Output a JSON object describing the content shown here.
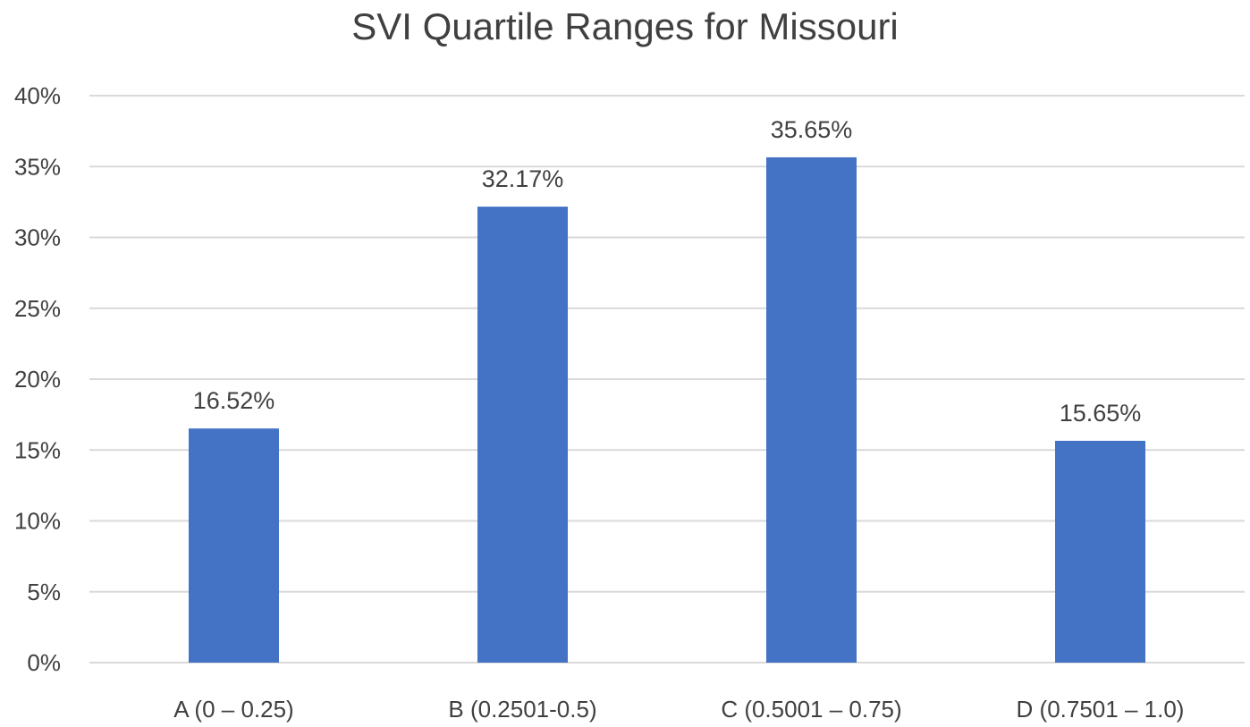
{
  "chart_data": {
    "type": "bar",
    "title": "SVI Quartile Ranges for Missouri",
    "xlabel": "",
    "ylabel": "",
    "categories": [
      "A (0 – 0.25)",
      "B (0.2501-0.5)",
      "C (0.5001 – 0.75)",
      "D (0.7501 – 1.0)"
    ],
    "values": [
      16.52,
      32.17,
      35.65,
      15.65
    ],
    "data_labels": [
      "16.52%",
      "32.17%",
      "35.65%",
      "15.65%"
    ],
    "ylim": [
      0,
      40
    ],
    "yticks": [
      0,
      5,
      10,
      15,
      20,
      25,
      30,
      35,
      40
    ],
    "ytick_labels": [
      "0%",
      "5%",
      "10%",
      "15%",
      "20%",
      "25%",
      "30%",
      "35%",
      "40%"
    ],
    "grid": true,
    "legend": "none",
    "colors": {
      "bar": "#4472C4",
      "grid": "#D9D9D9",
      "text": "#404040"
    }
  }
}
